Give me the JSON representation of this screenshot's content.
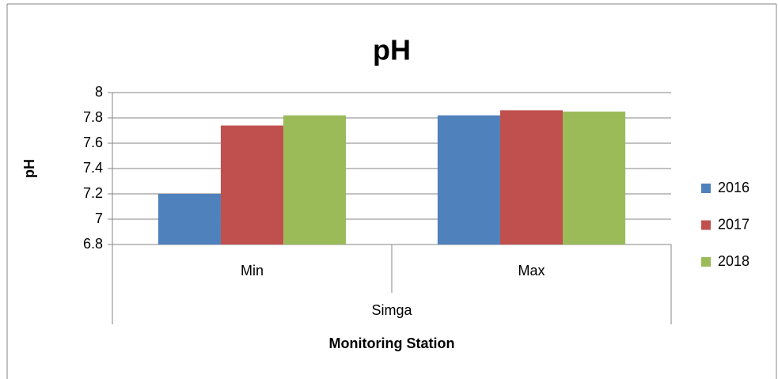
{
  "chart_data": {
    "type": "bar",
    "title": "pH",
    "y_label": "pH",
    "x_label": "Monitoring Station",
    "category_group": "Simga",
    "categories": [
      "Min",
      "Max"
    ],
    "series": [
      {
        "name": "2016",
        "color": "#4f81bd",
        "values": [
          7.2,
          7.82
        ]
      },
      {
        "name": "2017",
        "color": "#c0504d",
        "values": [
          7.74,
          7.86
        ]
      },
      {
        "name": "2018",
        "color": "#9bbb59",
        "values": [
          7.82,
          7.85
        ]
      }
    ],
    "ylim": [
      6.8,
      8
    ],
    "yticks": [
      6.8,
      7,
      7.2,
      7.4,
      7.6,
      7.8,
      8
    ],
    "grid": true,
    "legend": "right"
  }
}
